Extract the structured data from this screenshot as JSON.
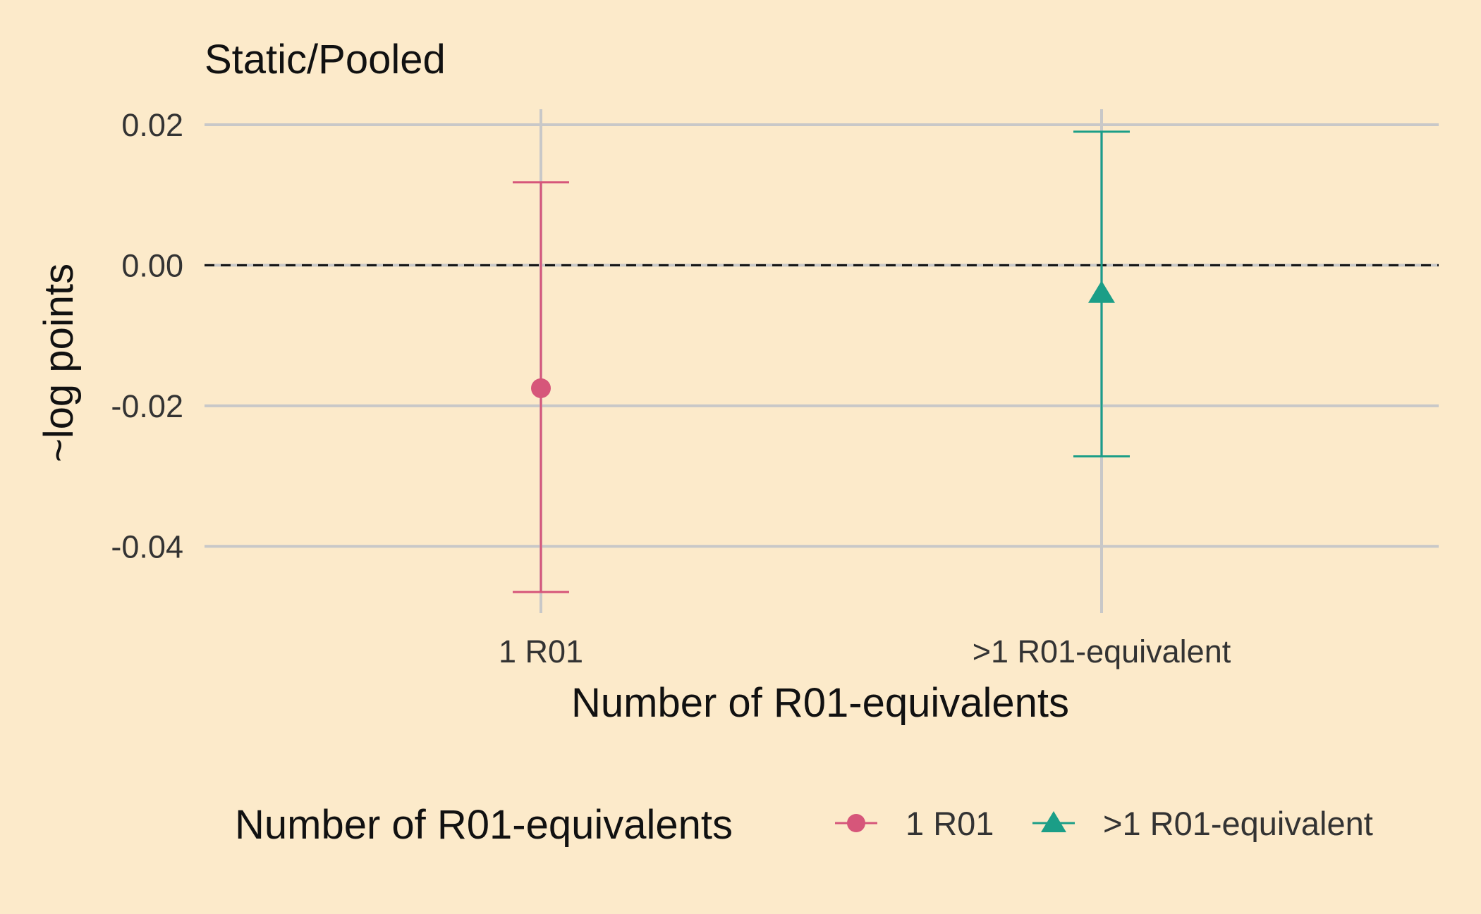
{
  "chart_data": {
    "type": "errorbar",
    "title": "Static/Pooled",
    "xlabel": "Number of R01-equivalents",
    "ylabel": "~log points",
    "categories": [
      "1 R01",
      ">1 R01-equivalent"
    ],
    "ylim": [
      -0.0495,
      0.0222
    ],
    "yticks": [
      0.02,
      0.0,
      -0.02,
      -0.04
    ],
    "ytick_labels": [
      "0.02",
      "0.00",
      "-0.02",
      "-0.04"
    ],
    "reference_line": 0,
    "grid": true,
    "series": [
      {
        "name": "1 R01",
        "category": "1 R01",
        "estimate": -0.0175,
        "lower": -0.0465,
        "upper": 0.0118,
        "color": "#D6567A",
        "marker": "circle"
      },
      {
        "name": ">1 R01-equivalent",
        "category": ">1 R01-equivalent",
        "estimate": -0.004,
        "lower": -0.0272,
        "upper": 0.019,
        "color": "#1B9E87",
        "marker": "triangle"
      }
    ],
    "legend": {
      "title": "Number of R01-equivalents",
      "position": "bottom"
    },
    "colors": {
      "background": "#FCEACA",
      "grid": "#C8C8C8"
    }
  }
}
